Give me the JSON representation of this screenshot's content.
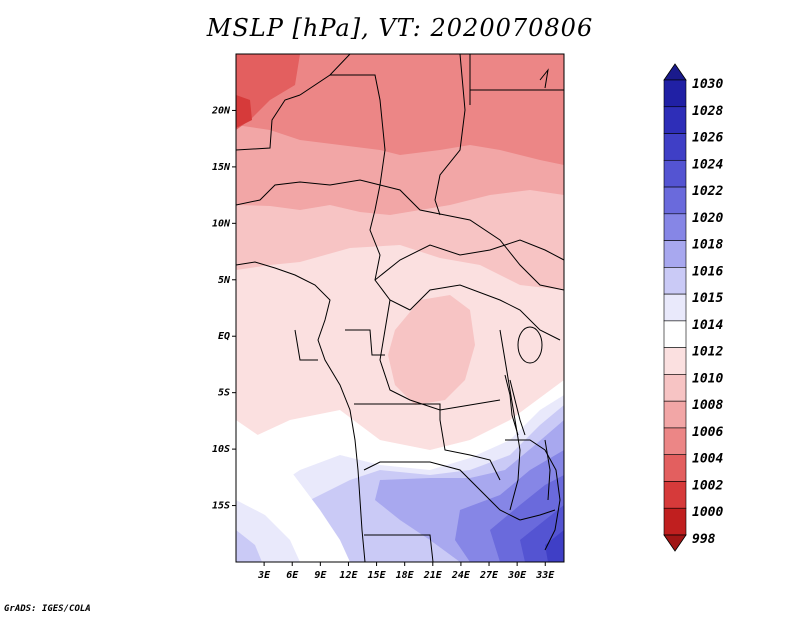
{
  "title": "MSLP [hPa], VT: 2020070806",
  "credit": "GrADS: IGES/COLA",
  "map": {
    "lon_range": [
      0,
      35
    ],
    "lat_range": [
      -20,
      25
    ],
    "lat_ticks": [
      {
        "value": 20,
        "label": "20N"
      },
      {
        "value": 15,
        "label": "15N"
      },
      {
        "value": 10,
        "label": "10N"
      },
      {
        "value": 5,
        "label": "5N"
      },
      {
        "value": 0,
        "label": "EQ"
      },
      {
        "value": -5,
        "label": "5S"
      },
      {
        "value": -10,
        "label": "10S"
      },
      {
        "value": -15,
        "label": "15S"
      }
    ],
    "lon_ticks": [
      {
        "value": 3,
        "label": "3E"
      },
      {
        "value": 6,
        "label": "6E"
      },
      {
        "value": 9,
        "label": "9E"
      },
      {
        "value": 12,
        "label": "12E"
      },
      {
        "value": 15,
        "label": "15E"
      },
      {
        "value": 18,
        "label": "18E"
      },
      {
        "value": 21,
        "label": "21E"
      },
      {
        "value": 24,
        "label": "24E"
      },
      {
        "value": 27,
        "label": "27E"
      },
      {
        "value": 30,
        "label": "30E"
      },
      {
        "value": 33,
        "label": "33E"
      }
    ]
  },
  "colorbar": {
    "labels": [
      "1030",
      "1028",
      "1026",
      "1024",
      "1022",
      "1020",
      "1018",
      "1016",
      "1015",
      "1014",
      "1012",
      "1010",
      "1008",
      "1006",
      "1004",
      "1002",
      "1000",
      "998"
    ],
    "colors": [
      "#1a1a8c",
      "#2020a5",
      "#2e2eb8",
      "#3f3fc6",
      "#5454d2",
      "#6a6adc",
      "#8686e6",
      "#a8a8ef",
      "#cacaf6",
      "#e9e9fb",
      "#ffffff",
      "#fbe0e0",
      "#f7c4c4",
      "#f2a6a6",
      "#ec8686",
      "#e35f5f",
      "#d63a3a",
      "#c01f1f",
      "#a11515"
    ]
  }
}
